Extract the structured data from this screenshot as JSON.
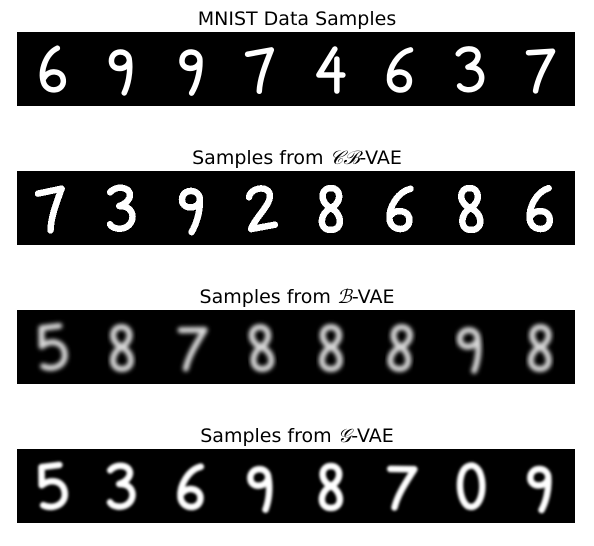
{
  "panels": [
    {
      "title_prefix": "MNIST Data Samples",
      "title_math": "",
      "title_suffix": "",
      "style": "sharp",
      "digits": [
        "6",
        "9",
        "9",
        "7",
        "4",
        "6",
        "3",
        "7"
      ]
    },
    {
      "title_prefix": "Samples from ",
      "title_math": "𝒞ℬ",
      "title_suffix": "-VAE",
      "style": "pixel",
      "digits": [
        "7",
        "3",
        "9",
        "2",
        "8",
        "6",
        "8",
        "6"
      ]
    },
    {
      "title_prefix": "Samples from ",
      "title_math": "ℬ",
      "title_suffix": "-VAE",
      "style": "blur",
      "digits": [
        "5",
        "8",
        "7",
        "8",
        "8",
        "8",
        "9",
        "8"
      ]
    },
    {
      "title_prefix": "Samples from ",
      "title_math": "𝒢",
      "title_suffix": "-VAE",
      "style": "soft",
      "digits": [
        "5",
        "3",
        "6",
        "9",
        "8",
        "7",
        "0",
        "9"
      ]
    }
  ]
}
